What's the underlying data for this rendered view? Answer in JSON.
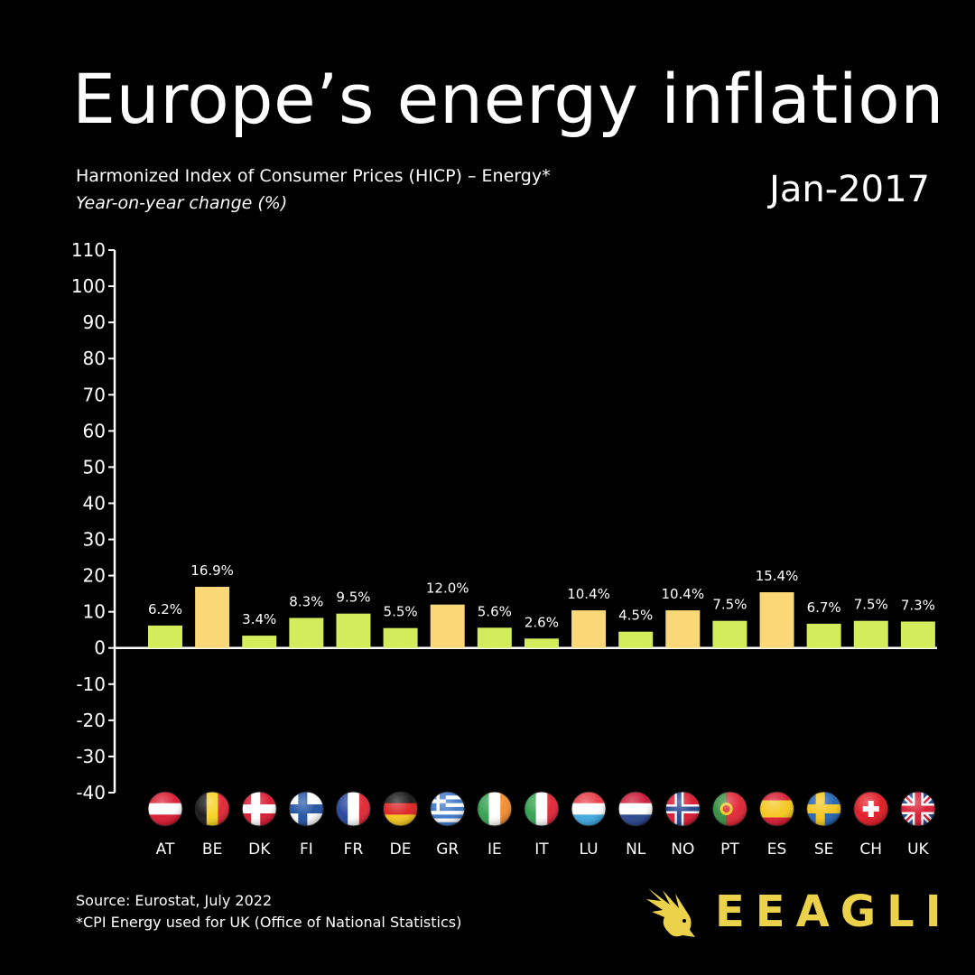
{
  "header": {
    "title": "Europe’s energy inflation",
    "subtitle": "Harmonized Index of Consumer Prices (HICP) – Energy*",
    "subtitle2": "Year-on-year change (%)",
    "period": "Jan-2017"
  },
  "footer": {
    "source": "Source: Eurostat, July 2022",
    "note": "*CPI Energy used for UK (Office of National Statistics)",
    "logo_text": "EEAGLI"
  },
  "colors": {
    "background": "#000000",
    "bar_green": "#d2ec5c",
    "bar_yellow": "#fbd877",
    "axis": "#ffffff",
    "logo": "#ecd24a"
  },
  "chart_data": {
    "type": "bar",
    "title": "Europe’s energy inflation",
    "ylim": [
      -40,
      110
    ],
    "yticks": [
      110,
      100,
      90,
      80,
      70,
      60,
      50,
      40,
      30,
      20,
      10,
      0,
      -10,
      -20,
      -30,
      -40
    ],
    "grid": false,
    "categories": [
      "AT",
      "BE",
      "DK",
      "FI",
      "FR",
      "DE",
      "GR",
      "IE",
      "IT",
      "LU",
      "NL",
      "NO",
      "PT",
      "ES",
      "SE",
      "CH",
      "UK"
    ],
    "values": [
      6.2,
      16.9,
      3.4,
      8.3,
      9.5,
      5.5,
      12.0,
      5.6,
      2.6,
      10.4,
      4.5,
      10.4,
      7.5,
      15.4,
      6.7,
      7.5,
      7.3
    ],
    "labels": [
      "6.2%",
      "16.9%",
      "3.4%",
      "8.3%",
      "9.5%",
      "5.5%",
      "12.0%",
      "5.6%",
      "2.6%",
      "10.4%",
      "4.5%",
      "10.4%",
      "7.5%",
      "15.4%",
      "6.7%",
      "7.5%",
      "7.3%"
    ],
    "bar_colors": [
      "green",
      "yellow",
      "green",
      "green",
      "green",
      "green",
      "yellow",
      "green",
      "green",
      "yellow",
      "green",
      "yellow",
      "green",
      "yellow",
      "green",
      "green",
      "green"
    ],
    "flags": [
      "austria-flag-icon",
      "belgium-flag-icon",
      "denmark-flag-icon",
      "finland-flag-icon",
      "france-flag-icon",
      "germany-flag-icon",
      "greece-flag-icon",
      "ireland-flag-icon",
      "italy-flag-icon",
      "luxembourg-flag-icon",
      "netherlands-flag-icon",
      "norway-flag-icon",
      "portugal-flag-icon",
      "spain-flag-icon",
      "sweden-flag-icon",
      "switzerland-flag-icon",
      "uk-flag-icon"
    ]
  }
}
